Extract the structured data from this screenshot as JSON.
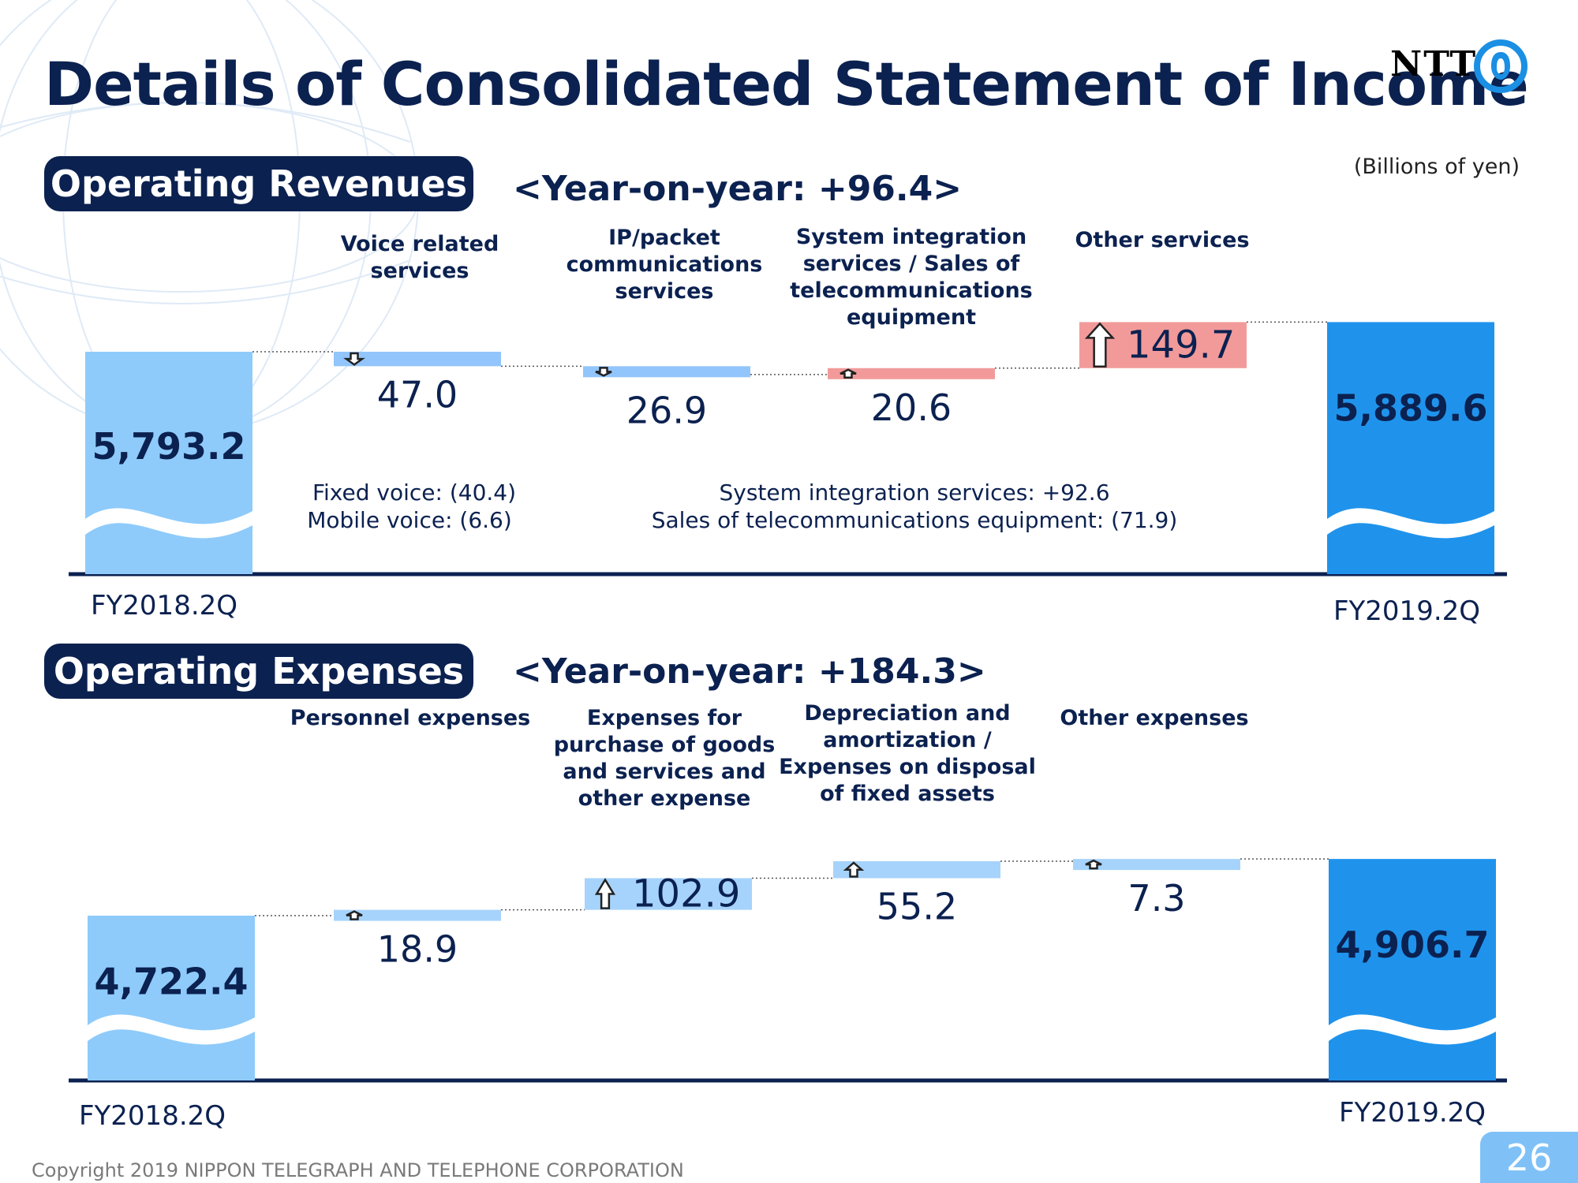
{
  "title": "Details of Consolidated Statement of Income",
  "logo_text": "NTT",
  "units": "(Billions of yen)",
  "footer": "Copyright 2019 NIPPON TELEGRAPH AND TELEPHONE CORPORATION",
  "page_number": "26",
  "colors": {
    "navy": "#0b2150",
    "total_start": "#8ecbfb",
    "total_end": "#1f93ec",
    "decrease_revenue": "#92c5fb",
    "increase_revenue": "#f29a9a",
    "change_expense": "#a6d3fb"
  },
  "revenues": {
    "section_label": "Operating Revenues",
    "yoy": "<Year-on-year: +96.4>",
    "start_label": "5,793.2",
    "end_label": "5,889.6",
    "start_period": "FY2018.2Q",
    "end_period": "FY2019.2Q",
    "notes": {
      "voice": [
        "Fixed voice: (40.4)",
        "Mobile voice: (6.6)"
      ],
      "si": [
        "System integration services: +92.6",
        "Sales of telecommunications equipment: (71.9)"
      ]
    }
  },
  "expenses": {
    "section_label": "Operating Expenses",
    "yoy": "<Year-on-year: +184.3>",
    "start_label": "4,722.4",
    "end_label": "4,906.7",
    "start_period": "FY2018.2Q",
    "end_period": "FY2019.2Q"
  },
  "chart_data": [
    {
      "type": "waterfall",
      "title": "Operating Revenues",
      "unit": "Billions of yen",
      "start": {
        "label": "FY2018.2Q",
        "value": 5793.2
      },
      "end": {
        "label": "FY2019.2Q",
        "value": 5889.6
      },
      "steps": [
        {
          "name_lines": [
            "Voice related",
            "services"
          ],
          "change": -47.0,
          "label": "47.0",
          "direction": "down"
        },
        {
          "name_lines": [
            "IP/packet",
            "communications",
            "services"
          ],
          "change": -26.9,
          "label": "26.9",
          "direction": "down"
        },
        {
          "name_lines": [
            "System integration",
            "services / Sales of",
            "telecommunications",
            "equipment"
          ],
          "change": 20.6,
          "label": "20.6",
          "direction": "up"
        },
        {
          "name_lines": [
            "Other services"
          ],
          "change": 149.7,
          "label": "149.7",
          "direction": "up"
        }
      ]
    },
    {
      "type": "waterfall",
      "title": "Operating Expenses",
      "unit": "Billions of yen",
      "start": {
        "label": "FY2018.2Q",
        "value": 4722.4
      },
      "end": {
        "label": "FY2019.2Q",
        "value": 4906.7
      },
      "steps": [
        {
          "name_lines": [
            "Personnel expenses"
          ],
          "change": 18.9,
          "label": "18.9",
          "direction": "up"
        },
        {
          "name_lines": [
            "Expenses for",
            "purchase of goods",
            "and services and",
            "other expense"
          ],
          "change": 102.9,
          "label": "102.9",
          "direction": "up"
        },
        {
          "name_lines": [
            "Depreciation and",
            "amortization /",
            "Expenses on disposal",
            "of fixed assets"
          ],
          "change": 55.2,
          "label": "55.2",
          "direction": "up"
        },
        {
          "name_lines": [
            "Other expenses"
          ],
          "change": 7.3,
          "label": "7.3",
          "direction": "up"
        }
      ]
    }
  ]
}
